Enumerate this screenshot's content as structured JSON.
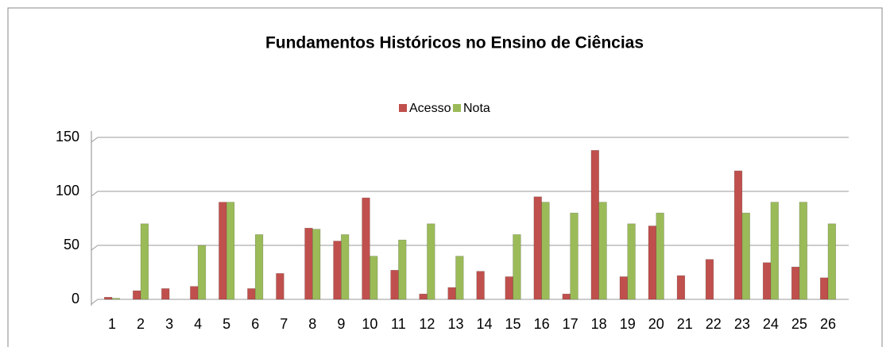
{
  "chart_data": {
    "type": "bar",
    "title": "Fundamentos Históricos no Ensino de Ciências",
    "categories": [
      "1",
      "2",
      "3",
      "4",
      "5",
      "6",
      "7",
      "8",
      "9",
      "10",
      "11",
      "12",
      "13",
      "14",
      "15",
      "16",
      "17",
      "18",
      "19",
      "20",
      "21",
      "22",
      "23",
      "24",
      "25",
      "26"
    ],
    "series": [
      {
        "name": "Acesso",
        "color": "#c0504d",
        "values": [
          2,
          8,
          10,
          12,
          90,
          10,
          24,
          66,
          54,
          94,
          27,
          5,
          11,
          26,
          21,
          95,
          5,
          138,
          21,
          68,
          22,
          37,
          119,
          34,
          30,
          20
        ]
      },
      {
        "name": "Nota",
        "color": "#9bbb59",
        "values": [
          1,
          70,
          0,
          50,
          90,
          60,
          0,
          65,
          60,
          40,
          55,
          70,
          40,
          0,
          60,
          90,
          80,
          90,
          70,
          80,
          0,
          0,
          80,
          90,
          90,
          70
        ]
      }
    ],
    "ylim": [
      0,
      150
    ],
    "yticks": [
      0,
      50,
      100,
      150
    ],
    "grid": true,
    "legend": "top"
  }
}
